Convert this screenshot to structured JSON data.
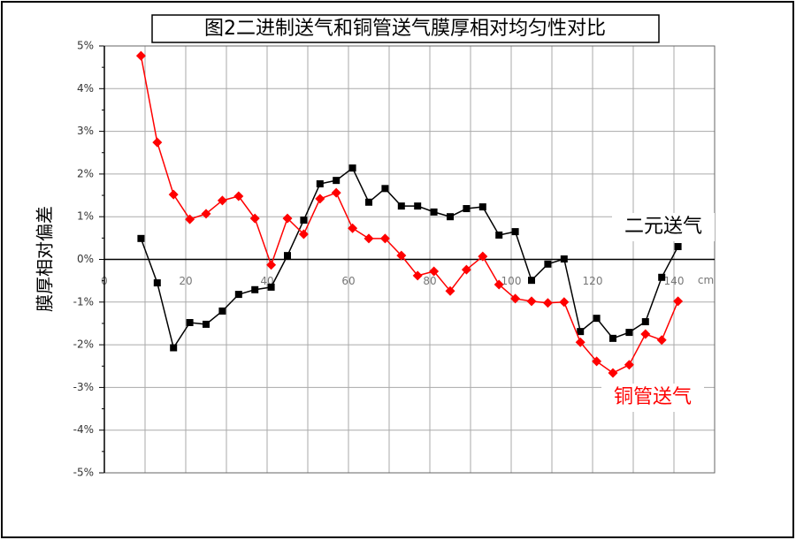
{
  "chart_data": {
    "type": "line",
    "title": "图2二进制送气和铜管送气膜厚相对均匀性对比",
    "y_label": "膜厚相对偏差",
    "x_label": "cm",
    "x": [
      9,
      13,
      17,
      21,
      25,
      29,
      33,
      37,
      41,
      45,
      49,
      53,
      57,
      61,
      65,
      69,
      73,
      77,
      81,
      85,
      89,
      93,
      97,
      101,
      105,
      109,
      113,
      117,
      121,
      125,
      129,
      133,
      137,
      141
    ],
    "series": [
      {
        "name": "二元送气",
        "color": "#000000",
        "marker": "square",
        "values": [
          0.49,
          -0.55,
          -2.07,
          -1.48,
          -1.52,
          -1.21,
          -0.82,
          -0.71,
          -0.65,
          0.09,
          0.92,
          1.77,
          1.85,
          2.14,
          1.34,
          1.66,
          1.25,
          1.25,
          1.11,
          1.0,
          1.19,
          1.23,
          0.57,
          0.65,
          -0.49,
          -0.11,
          0.01,
          -1.69,
          -1.38,
          -1.85,
          -1.71,
          -1.46,
          -0.42,
          0.3
        ]
      },
      {
        "name": "铜管送气",
        "color": "#ff0000",
        "marker": "diamond",
        "values": [
          4.77,
          2.74,
          1.52,
          0.94,
          1.07,
          1.38,
          1.48,
          0.96,
          -0.13,
          0.96,
          0.59,
          1.42,
          1.56,
          0.73,
          0.49,
          0.49,
          0.09,
          -0.38,
          -0.28,
          -0.74,
          -0.24,
          0.07,
          -0.59,
          -0.92,
          -0.98,
          -1.02,
          -1.0,
          -1.94,
          -2.39,
          -2.66,
          -2.47,
          -1.75,
          -1.89,
          -0.98
        ]
      }
    ],
    "xlim": [
      0,
      150
    ],
    "xticks": [
      0,
      20,
      40,
      60,
      80,
      100,
      120,
      140
    ],
    "ylim": [
      -5,
      5
    ],
    "yticks": [
      {
        "value": 5,
        "label": "5%"
      },
      {
        "value": 4,
        "label": "4%"
      },
      {
        "value": 3,
        "label": "3%"
      },
      {
        "value": 2,
        "label": "2%"
      },
      {
        "value": 1,
        "label": "1%"
      },
      {
        "value": 0,
        "label": "0%"
      },
      {
        "value": -1,
        "label": "-1%"
      },
      {
        "value": -2,
        "label": "-2%"
      },
      {
        "value": -3,
        "label": "-3%"
      },
      {
        "value": -4,
        "label": "-4%"
      },
      {
        "value": -5,
        "label": "-5%"
      }
    ],
    "grid": true
  }
}
